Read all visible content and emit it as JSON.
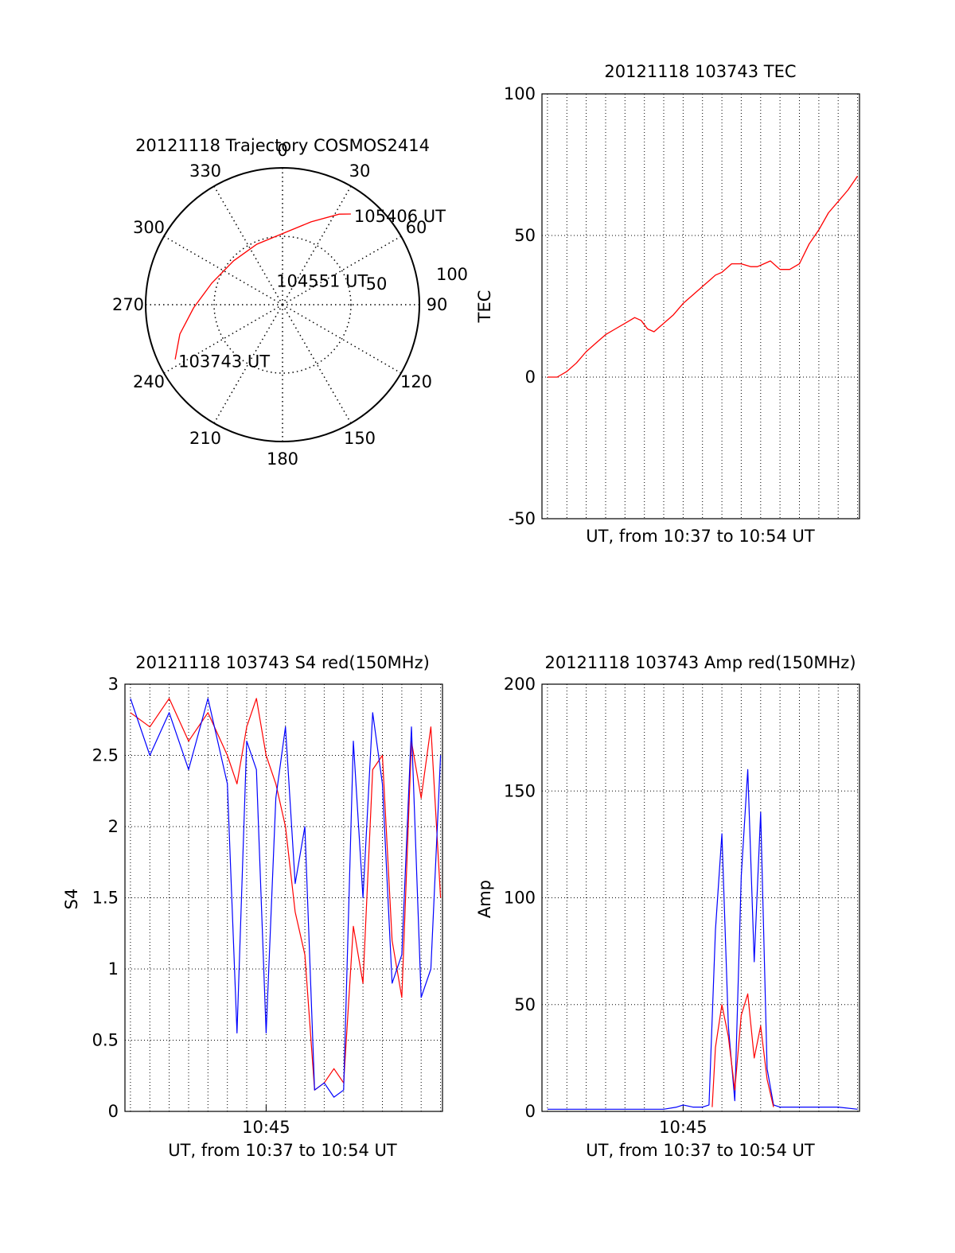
{
  "colors": {
    "red": "#ff0000",
    "blue": "#0000ff",
    "axis": "#000000",
    "grid": "#000000"
  },
  "chart_data": [
    {
      "type": "polar",
      "title": "20121118 Trajectory COSMOS2414",
      "azimuth_labels": [
        "0",
        "30",
        "60",
        "90",
        "120",
        "150",
        "180",
        "210",
        "240",
        "270",
        "300",
        "330"
      ],
      "radial_labels": [
        "50",
        "100"
      ],
      "rlim": [
        0,
        100
      ],
      "grid": true,
      "series": [
        {
          "color": "#ff0000",
          "points": [
            {
              "az": 243,
              "r": 88
            },
            {
              "az": 254,
              "r": 78
            },
            {
              "az": 268,
              "r": 65
            },
            {
              "az": 287,
              "r": 54
            },
            {
              "az": 312,
              "r": 48
            },
            {
              "az": 337,
              "r": 48
            },
            {
              "az": 0,
              "r": 52
            },
            {
              "az": 19,
              "r": 64
            },
            {
              "az": 32,
              "r": 78
            },
            {
              "az": 37,
              "r": 83
            }
          ]
        }
      ],
      "annotations": [
        {
          "text": "103743 UT",
          "az": 243,
          "r": 88
        },
        {
          "text": "104551 UT",
          "az": 340,
          "r": 20
        },
        {
          "text": "105406 UT",
          "az": 37,
          "r": 83
        }
      ]
    },
    {
      "type": "line",
      "title": "20121118 103743 TEC",
      "xlabel": "UT, from 10:37 to 10:54 UT",
      "ylabel": "TEC",
      "xlim": [
        "10:37:43",
        "10:54:06"
      ],
      "ylim": [
        -50,
        100
      ],
      "yticks": [
        -50,
        0,
        50,
        100
      ],
      "grid": true,
      "series": [
        {
          "color": "#ff0000",
          "x": [
            "10:38:00",
            "10:38:30",
            "10:39:00",
            "10:39:30",
            "10:40:00",
            "10:40:30",
            "10:41:00",
            "10:41:30",
            "10:42:00",
            "10:42:30",
            "10:42:50",
            "10:43:10",
            "10:43:30",
            "10:44:00",
            "10:44:30",
            "10:45:00",
            "10:45:30",
            "10:46:00",
            "10:46:20",
            "10:46:40",
            "10:47:00",
            "10:47:30",
            "10:48:00",
            "10:48:30",
            "10:48:50",
            "10:49:10",
            "10:49:30",
            "10:50:00",
            "10:50:30",
            "10:51:00",
            "10:51:30",
            "10:52:00",
            "10:52:30",
            "10:53:00",
            "10:53:30",
            "10:54:00"
          ],
          "y": [
            0,
            0,
            2,
            5,
            9,
            12,
            15,
            17,
            19,
            21,
            20,
            17,
            16,
            19,
            22,
            26,
            29,
            32,
            34,
            36,
            37,
            40,
            40,
            39,
            39,
            40,
            41,
            38,
            38,
            40,
            47,
            52,
            58,
            62,
            66,
            71
          ]
        }
      ]
    },
    {
      "type": "line",
      "title": "20121118 103743 S4 red(150MHz)",
      "xlabel": "UT, from 10:37 to 10:54 UT",
      "ylabel": "S4",
      "xlim": [
        "10:37:43",
        "10:54:06"
      ],
      "xticks": [
        "10:45"
      ],
      "ylim": [
        0,
        3
      ],
      "yticks": [
        0,
        0.5,
        1,
        1.5,
        2,
        2.5,
        3
      ],
      "grid": true,
      "series": [
        {
          "color": "#ff0000",
          "x": [
            "10:38:00",
            "10:39:00",
            "10:40:00",
            "10:41:00",
            "10:42:00",
            "10:43:00",
            "10:43:30",
            "10:44:00",
            "10:44:30",
            "10:45:00",
            "10:45:30",
            "10:46:00",
            "10:46:30",
            "10:47:00",
            "10:47:30",
            "10:48:00",
            "10:48:30",
            "10:49:00",
            "10:49:30",
            "10:50:00",
            "10:50:30",
            "10:51:00",
            "10:51:30",
            "10:52:00",
            "10:52:30",
            "10:53:00",
            "10:53:30",
            "10:54:00"
          ],
          "y": [
            2.8,
            2.7,
            2.9,
            2.6,
            2.8,
            2.5,
            2.3,
            2.7,
            2.9,
            2.5,
            2.3,
            2.0,
            1.4,
            1.1,
            0.15,
            0.2,
            0.3,
            0.2,
            1.3,
            0.9,
            2.4,
            2.5,
            1.2,
            0.8,
            2.6,
            2.2,
            2.7,
            1.5
          ]
        },
        {
          "color": "#0000ff",
          "x": [
            "10:38:00",
            "10:39:00",
            "10:40:00",
            "10:41:00",
            "10:42:00",
            "10:43:00",
            "10:43:30",
            "10:44:00",
            "10:44:30",
            "10:45:00",
            "10:45:30",
            "10:46:00",
            "10:46:30",
            "10:47:00",
            "10:47:30",
            "10:48:00",
            "10:48:30",
            "10:49:00",
            "10:49:30",
            "10:50:00",
            "10:50:30",
            "10:51:00",
            "10:51:30",
            "10:52:00",
            "10:52:30",
            "10:53:00",
            "10:53:30",
            "10:54:00"
          ],
          "y": [
            2.9,
            2.5,
            2.8,
            2.4,
            2.9,
            2.3,
            0.55,
            2.6,
            2.4,
            0.55,
            2.2,
            2.7,
            1.6,
            2.0,
            0.15,
            0.2,
            0.1,
            0.15,
            2.6,
            1.5,
            2.8,
            2.3,
            0.9,
            1.1,
            2.7,
            0.8,
            1.0,
            2.5
          ]
        }
      ]
    },
    {
      "type": "line",
      "title": "20121118 103743 Amp red(150MHz)",
      "xlabel": "UT, from 10:37 to 10:54 UT",
      "ylabel": "Amp",
      "xlim": [
        "10:37:43",
        "10:54:06"
      ],
      "xticks": [
        "10:45"
      ],
      "ylim": [
        0,
        200
      ],
      "yticks": [
        0,
        50,
        100,
        150,
        200
      ],
      "grid": true,
      "series": [
        {
          "color": "#0000ff",
          "x": [
            "10:38:00",
            "10:40:00",
            "10:42:00",
            "10:44:00",
            "10:44:40",
            "10:45:00",
            "10:45:30",
            "10:46:00",
            "10:46:20",
            "10:46:40",
            "10:47:00",
            "10:47:20",
            "10:47:40",
            "10:48:00",
            "10:48:20",
            "10:48:40",
            "10:49:00",
            "10:49:20",
            "10:49:40",
            "10:50:00",
            "10:51:00",
            "10:52:00",
            "10:53:00",
            "10:54:00"
          ],
          "y": [
            1,
            1,
            1,
            1,
            2,
            3,
            2,
            2,
            3,
            85,
            130,
            40,
            5,
            110,
            160,
            70,
            140,
            20,
            3,
            2,
            2,
            2,
            2,
            1
          ]
        },
        {
          "color": "#ff0000",
          "x": [
            "10:46:30",
            "10:46:40",
            "10:47:00",
            "10:47:20",
            "10:47:40",
            "10:48:00",
            "10:48:20",
            "10:48:40",
            "10:49:00",
            "10:49:20",
            "10:49:40"
          ],
          "y": [
            2,
            30,
            50,
            35,
            10,
            45,
            55,
            25,
            40,
            15,
            2
          ]
        }
      ]
    }
  ]
}
